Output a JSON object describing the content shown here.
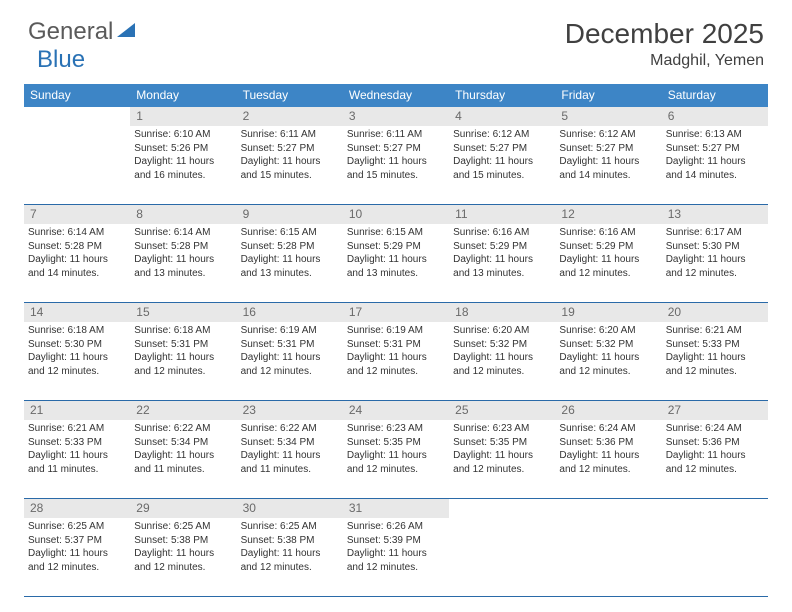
{
  "logo": {
    "text1": "General",
    "text2": "Blue"
  },
  "title": "December 2025",
  "location": "Madghil, Yemen",
  "colors": {
    "header_bg": "#3d85c6",
    "header_text": "#ffffff",
    "daynum_bg": "#e8e8e8",
    "daynum_text": "#6a6a6a",
    "border": "#2a6aa8",
    "logo_gray": "#5a5a5a",
    "logo_blue": "#2a72b5"
  },
  "day_names": [
    "Sunday",
    "Monday",
    "Tuesday",
    "Wednesday",
    "Thursday",
    "Friday",
    "Saturday"
  ],
  "weeks": [
    {
      "nums": [
        "",
        "1",
        "2",
        "3",
        "4",
        "5",
        "6"
      ],
      "cells": [
        null,
        {
          "sunrise": "6:10 AM",
          "sunset": "5:26 PM",
          "daylight": "11 hours and 16 minutes."
        },
        {
          "sunrise": "6:11 AM",
          "sunset": "5:27 PM",
          "daylight": "11 hours and 15 minutes."
        },
        {
          "sunrise": "6:11 AM",
          "sunset": "5:27 PM",
          "daylight": "11 hours and 15 minutes."
        },
        {
          "sunrise": "6:12 AM",
          "sunset": "5:27 PM",
          "daylight": "11 hours and 15 minutes."
        },
        {
          "sunrise": "6:12 AM",
          "sunset": "5:27 PM",
          "daylight": "11 hours and 14 minutes."
        },
        {
          "sunrise": "6:13 AM",
          "sunset": "5:27 PM",
          "daylight": "11 hours and 14 minutes."
        }
      ]
    },
    {
      "nums": [
        "7",
        "8",
        "9",
        "10",
        "11",
        "12",
        "13"
      ],
      "cells": [
        {
          "sunrise": "6:14 AM",
          "sunset": "5:28 PM",
          "daylight": "11 hours and 14 minutes."
        },
        {
          "sunrise": "6:14 AM",
          "sunset": "5:28 PM",
          "daylight": "11 hours and 13 minutes."
        },
        {
          "sunrise": "6:15 AM",
          "sunset": "5:28 PM",
          "daylight": "11 hours and 13 minutes."
        },
        {
          "sunrise": "6:15 AM",
          "sunset": "5:29 PM",
          "daylight": "11 hours and 13 minutes."
        },
        {
          "sunrise": "6:16 AM",
          "sunset": "5:29 PM",
          "daylight": "11 hours and 13 minutes."
        },
        {
          "sunrise": "6:16 AM",
          "sunset": "5:29 PM",
          "daylight": "11 hours and 12 minutes."
        },
        {
          "sunrise": "6:17 AM",
          "sunset": "5:30 PM",
          "daylight": "11 hours and 12 minutes."
        }
      ]
    },
    {
      "nums": [
        "14",
        "15",
        "16",
        "17",
        "18",
        "19",
        "20"
      ],
      "cells": [
        {
          "sunrise": "6:18 AM",
          "sunset": "5:30 PM",
          "daylight": "11 hours and 12 minutes."
        },
        {
          "sunrise": "6:18 AM",
          "sunset": "5:31 PM",
          "daylight": "11 hours and 12 minutes."
        },
        {
          "sunrise": "6:19 AM",
          "sunset": "5:31 PM",
          "daylight": "11 hours and 12 minutes."
        },
        {
          "sunrise": "6:19 AM",
          "sunset": "5:31 PM",
          "daylight": "11 hours and 12 minutes."
        },
        {
          "sunrise": "6:20 AM",
          "sunset": "5:32 PM",
          "daylight": "11 hours and 12 minutes."
        },
        {
          "sunrise": "6:20 AM",
          "sunset": "5:32 PM",
          "daylight": "11 hours and 12 minutes."
        },
        {
          "sunrise": "6:21 AM",
          "sunset": "5:33 PM",
          "daylight": "11 hours and 12 minutes."
        }
      ]
    },
    {
      "nums": [
        "21",
        "22",
        "23",
        "24",
        "25",
        "26",
        "27"
      ],
      "cells": [
        {
          "sunrise": "6:21 AM",
          "sunset": "5:33 PM",
          "daylight": "11 hours and 11 minutes."
        },
        {
          "sunrise": "6:22 AM",
          "sunset": "5:34 PM",
          "daylight": "11 hours and 11 minutes."
        },
        {
          "sunrise": "6:22 AM",
          "sunset": "5:34 PM",
          "daylight": "11 hours and 11 minutes."
        },
        {
          "sunrise": "6:23 AM",
          "sunset": "5:35 PM",
          "daylight": "11 hours and 12 minutes."
        },
        {
          "sunrise": "6:23 AM",
          "sunset": "5:35 PM",
          "daylight": "11 hours and 12 minutes."
        },
        {
          "sunrise": "6:24 AM",
          "sunset": "5:36 PM",
          "daylight": "11 hours and 12 minutes."
        },
        {
          "sunrise": "6:24 AM",
          "sunset": "5:36 PM",
          "daylight": "11 hours and 12 minutes."
        }
      ]
    },
    {
      "nums": [
        "28",
        "29",
        "30",
        "31",
        "",
        "",
        ""
      ],
      "cells": [
        {
          "sunrise": "6:25 AM",
          "sunset": "5:37 PM",
          "daylight": "11 hours and 12 minutes."
        },
        {
          "sunrise": "6:25 AM",
          "sunset": "5:38 PM",
          "daylight": "11 hours and 12 minutes."
        },
        {
          "sunrise": "6:25 AM",
          "sunset": "5:38 PM",
          "daylight": "11 hours and 12 minutes."
        },
        {
          "sunrise": "6:26 AM",
          "sunset": "5:39 PM",
          "daylight": "11 hours and 12 minutes."
        },
        null,
        null,
        null
      ]
    }
  ],
  "labels": {
    "sunrise": "Sunrise:",
    "sunset": "Sunset:",
    "daylight": "Daylight:"
  }
}
